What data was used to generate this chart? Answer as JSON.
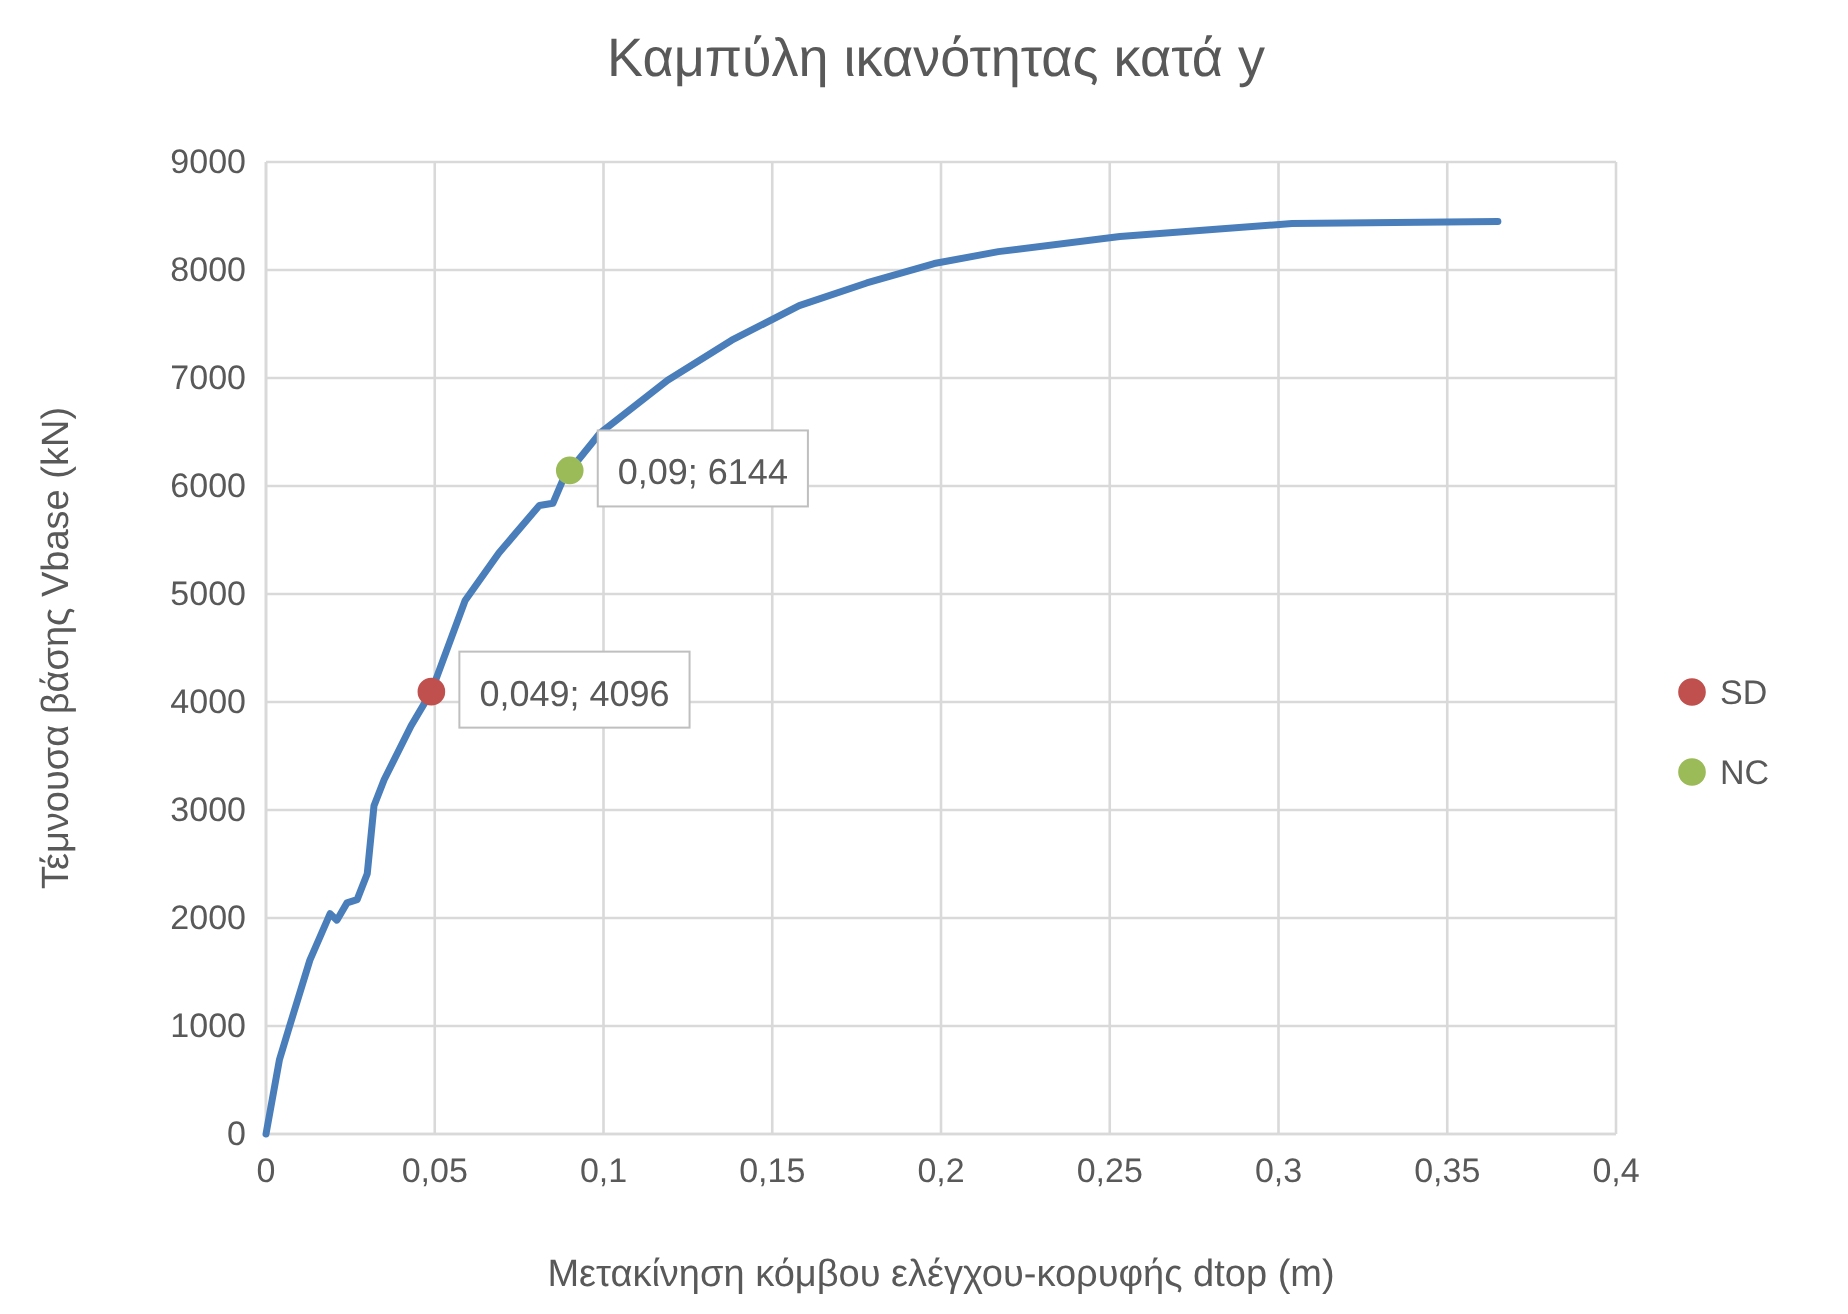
{
  "chart_data": {
    "type": "line",
    "title": "Καμπύλη ικανότητας κατά y",
    "xlabel": "Μετακίνηση κόμβου ελέγχου-κορυφής dtop (m)",
    "ylabel": "Τέμνουσα βάσης Vbase (kN)",
    "xlim": [
      0,
      0.4
    ],
    "ylim": [
      0,
      9000
    ],
    "xticks": [
      0,
      {
        "value": 0.05,
        "label": "0,05"
      },
      {
        "value": 0.1,
        "label": "0,1"
      },
      {
        "value": 0.15,
        "label": "0,15"
      },
      {
        "value": 0.2,
        "label": "0,2"
      },
      {
        "value": 0.25,
        "label": "0,25"
      },
      {
        "value": 0.3,
        "label": "0,3"
      },
      {
        "value": 0.35,
        "label": "0,35"
      },
      {
        "value": 0.4,
        "label": "0,4"
      }
    ],
    "yticks": [
      0,
      1000,
      2000,
      3000,
      4000,
      5000,
      6000,
      7000,
      8000,
      9000
    ],
    "grid": true,
    "legend": "right",
    "series": [
      {
        "color": "#4a7ebb",
        "x": [
          0,
          0.004,
          0.007,
          0.013,
          0.019,
          0.021,
          0.024,
          0.027,
          0.03,
          0.032,
          0.035,
          0.043,
          0.049,
          0.059,
          0.069,
          0.081,
          0.085,
          0.088,
          0.09,
          0.099,
          0.119,
          0.138,
          0.158,
          0.178,
          0.198,
          0.217,
          0.253,
          0.304,
          0.365
        ],
        "values": [
          0,
          690,
          1000,
          1610,
          2040,
          1980,
          2140,
          2170,
          2410,
          3040,
          3280,
          3780,
          4096,
          4940,
          5380,
          5820,
          5840,
          6060,
          6144,
          6490,
          6980,
          7350,
          7670,
          7880,
          8060,
          8170,
          8310,
          8430,
          8450
        ]
      },
      {
        "type": "scatter",
        "name": "SD",
        "color": "#c0504d",
        "marker": "circle",
        "x": [
          0.049
        ],
        "values": [
          4096
        ],
        "value_labels": [
          "0,049; 4096"
        ]
      },
      {
        "type": "scatter",
        "name": "NC",
        "color": "#9bbb59",
        "marker": "circle",
        "x": [
          0.09
        ],
        "values": [
          6144
        ],
        "value_labels": [
          "0,09; 6144"
        ]
      }
    ]
  }
}
